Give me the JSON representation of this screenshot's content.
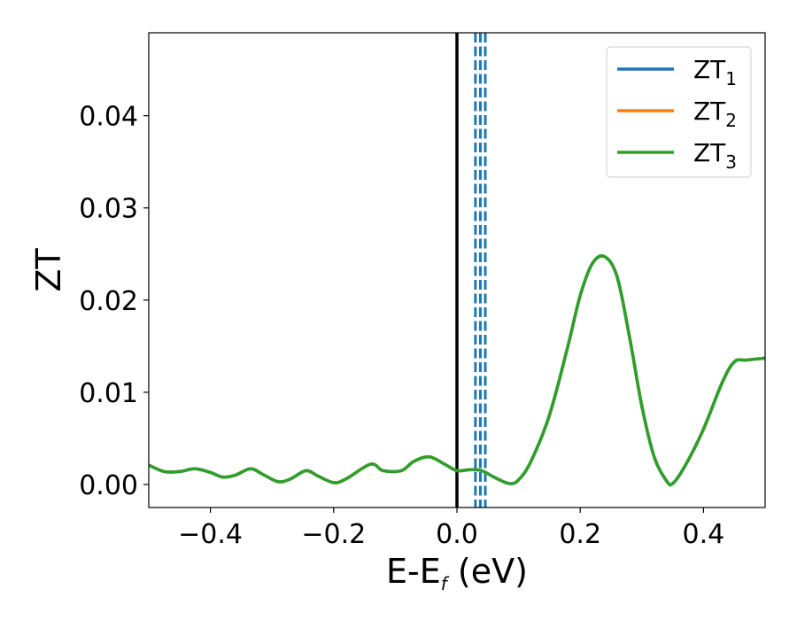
{
  "chart_data": {
    "type": "line",
    "xlabel_main": "E-E",
    "xlabel_sub": "f",
    "xlabel_unit": " (eV)",
    "ylabel": "ZT",
    "xlim": [
      -0.5,
      0.5
    ],
    "ylim": [
      -0.0025,
      0.049
    ],
    "x_ticks": [
      -0.4,
      -0.2,
      0.0,
      0.2,
      0.4
    ],
    "x_tick_labels": [
      "−0.4",
      "−0.2",
      "0.0",
      "0.2",
      "0.4"
    ],
    "y_ticks": [
      0.0,
      0.01,
      0.02,
      0.03,
      0.04
    ],
    "y_tick_labels": [
      "0.00",
      "0.01",
      "0.02",
      "0.03",
      "0.04"
    ],
    "grid": false,
    "legend_position": "top-right",
    "series": [
      {
        "name_main": "ZT",
        "name_sub": "1",
        "color": "#1f77b4"
      },
      {
        "name_main": "ZT",
        "name_sub": "2",
        "color": "#ff7f0e"
      },
      {
        "name_main": "ZT",
        "name_sub": "3",
        "color": "#2ca02c"
      }
    ],
    "curve": {
      "x": [
        -0.5,
        -0.475,
        -0.45,
        -0.425,
        -0.4,
        -0.38,
        -0.36,
        -0.335,
        -0.315,
        -0.29,
        -0.27,
        -0.245,
        -0.225,
        -0.2,
        -0.18,
        -0.14,
        -0.12,
        -0.09,
        -0.07,
        -0.045,
        -0.02,
        0.0,
        0.02,
        0.04,
        0.06,
        0.085,
        0.1,
        0.12,
        0.15,
        0.18,
        0.2,
        0.22,
        0.24,
        0.26,
        0.28,
        0.3,
        0.32,
        0.34,
        0.35,
        0.37,
        0.4,
        0.43,
        0.45,
        0.47,
        0.5
      ],
      "y": [
        0.0021,
        0.0014,
        0.0014,
        0.0017,
        0.0013,
        0.0008,
        0.001,
        0.0017,
        0.0011,
        0.0003,
        0.0006,
        0.0015,
        0.0009,
        0.0002,
        0.0006,
        0.0022,
        0.0015,
        0.0015,
        0.0025,
        0.003,
        0.0022,
        0.0015,
        0.0016,
        0.0015,
        0.0008,
        0.0001,
        0.0005,
        0.0025,
        0.0075,
        0.015,
        0.0205,
        0.024,
        0.0247,
        0.0225,
        0.016,
        0.0085,
        0.003,
        0.0004,
        0.0001,
        0.002,
        0.006,
        0.011,
        0.0133,
        0.0135,
        0.0137
      ]
    },
    "vertical_lines": [
      {
        "x": 0.0,
        "color": "#000000",
        "style": "solid"
      },
      {
        "x": 0.03,
        "color": "#1f77b4",
        "style": "dashed"
      },
      {
        "x": 0.038,
        "color": "#1f77b4",
        "style": "dashed"
      },
      {
        "x": 0.046,
        "color": "#1f77b4",
        "style": "dashed"
      }
    ]
  }
}
